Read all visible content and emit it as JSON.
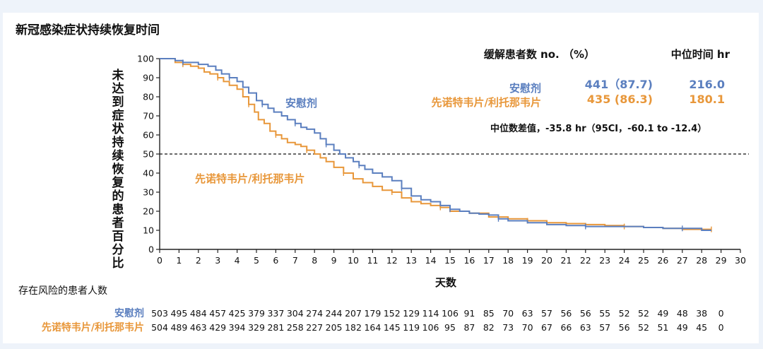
{
  "chart_data": {
    "type": "line",
    "title": "新冠感染症状持续恢复时间",
    "xlabel": "天数",
    "ylabel": "未达到症状持续恢复的患者百分比",
    "xlim": [
      0,
      30
    ],
    "ylim": [
      0,
      100
    ],
    "x_ticks": [
      0,
      1,
      2,
      3,
      4,
      5,
      6,
      7,
      8,
      9,
      10,
      11,
      12,
      13,
      14,
      15,
      16,
      17,
      18,
      19,
      20,
      21,
      22,
      23,
      24,
      25,
      26,
      27,
      28,
      29,
      30
    ],
    "y_ticks": [
      0,
      10,
      20,
      30,
      40,
      50,
      60,
      70,
      80,
      90,
      100
    ],
    "reference_line": 50,
    "legend_header": {
      "stats": "缓解患者数 no. （%）",
      "median": "中位时间 hr"
    },
    "series": [
      {
        "name": "安慰剂",
        "color": "#5b7fbf",
        "stats": "441（87.7)",
        "median": "216.0",
        "x": [
          0,
          0.8,
          1.2,
          2.0,
          2.5,
          2.9,
          3.2,
          3.6,
          4.0,
          4.3,
          4.6,
          5.0,
          5.3,
          5.6,
          5.9,
          6.3,
          6.6,
          7.0,
          7.3,
          7.6,
          8.0,
          8.3,
          8.6,
          9.0,
          9.3,
          9.6,
          10.0,
          10.3,
          10.6,
          11.0,
          11.5,
          12.0,
          12.5,
          13.0,
          13.5,
          14.0,
          14.5,
          15.0,
          15.5,
          16.0,
          16.5,
          17.0,
          17.5,
          18.0,
          19.0,
          20.0,
          21.0,
          22.0,
          23.0,
          24.0,
          25.0,
          26.0,
          27.0,
          28.0,
          28.5
        ],
        "y": [
          100,
          99,
          98,
          97,
          96,
          94,
          92,
          90,
          88,
          85,
          82,
          78,
          76,
          74,
          72,
          70,
          68,
          66,
          64,
          63,
          61,
          58,
          55,
          52,
          50,
          48,
          46,
          44,
          42,
          40,
          38,
          36,
          32,
          28,
          26,
          25,
          23,
          21,
          20,
          19,
          18.5,
          18,
          16,
          15,
          14,
          13,
          12.5,
          12,
          12,
          12,
          11.5,
          11,
          11,
          10,
          10
        ]
      },
      {
        "name": "先诺特韦片/利托那韦片",
        "color": "#e8973a",
        "stats": "435 (86.3)",
        "median": "180.1",
        "x": [
          0,
          0.8,
          1.2,
          1.6,
          2.0,
          2.3,
          2.6,
          3.0,
          3.3,
          3.6,
          4.0,
          4.3,
          4.6,
          4.9,
          5.1,
          5.4,
          5.7,
          6.0,
          6.3,
          6.6,
          7.0,
          7.3,
          7.6,
          8.0,
          8.3,
          8.6,
          9.0,
          9.5,
          10.0,
          10.5,
          11.0,
          11.5,
          12.0,
          12.5,
          13.0,
          13.5,
          14.0,
          14.5,
          15.0,
          16.0,
          17.0,
          18.0,
          19.0,
          20.0,
          21.0,
          22.0,
          23.0,
          24.0,
          25.0,
          26.0,
          27.0,
          28.0,
          28.5
        ],
        "y": [
          100,
          98,
          97,
          96,
          95,
          93,
          92,
          90,
          88,
          86,
          84,
          80,
          76,
          72,
          68,
          66,
          62,
          60,
          58,
          56,
          55,
          54,
          52,
          50,
          48,
          46,
          43,
          40,
          37,
          35,
          33,
          31,
          30,
          27,
          25,
          24,
          23,
          22,
          20,
          19,
          17,
          16,
          15,
          14,
          13.5,
          13,
          12.5,
          12,
          11.5,
          11,
          10.5,
          10.5,
          10.5
        ]
      }
    ],
    "annotations": [
      {
        "text": "安慰剂",
        "series": 0
      },
      {
        "text": "先诺特韦片/利托那韦片",
        "series": 1
      },
      {
        "text": "中位数差值，-35.8 hr（95CI，-60.1 to -12.4）"
      }
    ],
    "risk_table": {
      "title": "存在风险的患者人数",
      "rows": [
        {
          "label": "安慰剂",
          "values": [
            503,
            495,
            484,
            457,
            425,
            379,
            337,
            304,
            274,
            244,
            207,
            179,
            152,
            129,
            114,
            106,
            91,
            85,
            70,
            63,
            57,
            56,
            56,
            55,
            52,
            52,
            49,
            48,
            38,
            0
          ]
        },
        {
          "label": "先诺特韦片/利托那韦片",
          "values": [
            504,
            489,
            463,
            429,
            394,
            329,
            281,
            258,
            227,
            205,
            182,
            164,
            145,
            119,
            106,
            95,
            87,
            82,
            73,
            70,
            67,
            66,
            63,
            57,
            56,
            52,
            51,
            49,
            45,
            0
          ]
        }
      ]
    }
  }
}
